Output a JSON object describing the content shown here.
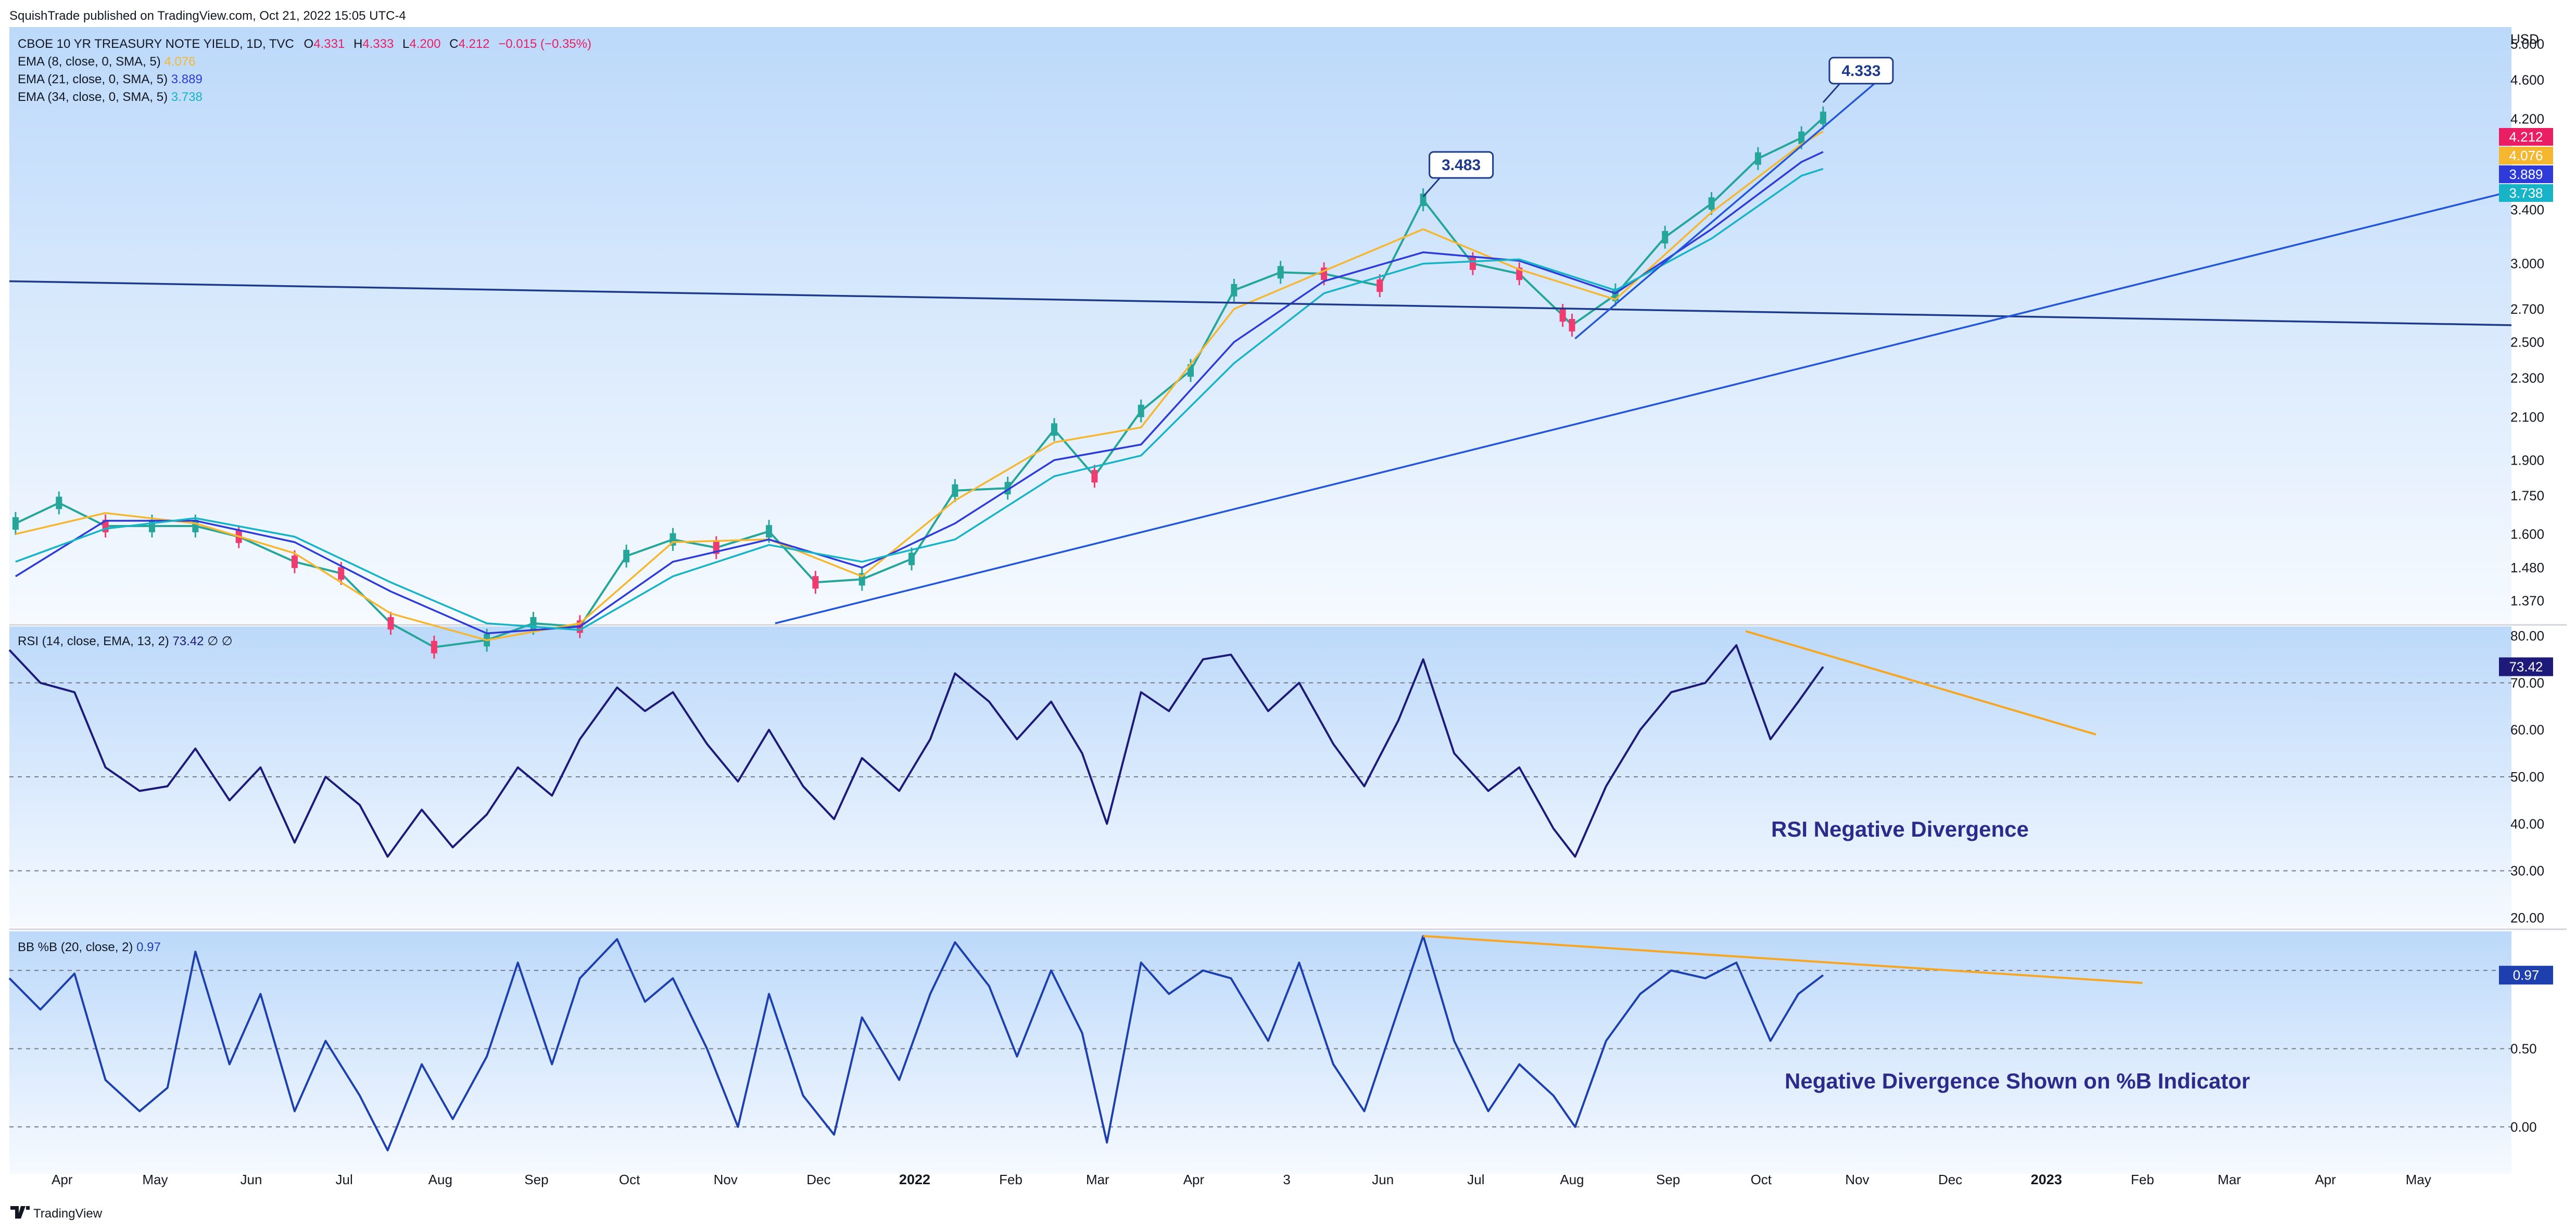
{
  "header": {
    "published": "SquishTrade published on TradingView.com, Oct 21, 2022 15:05 UTC-4",
    "footer_brand": "TradingView"
  },
  "price_pane": {
    "title": "CBOE 10 YR TREASURY NOTE YIELD, 1D, TVC",
    "ohlc": [
      {
        "k": "O",
        "v": "4.331"
      },
      {
        "k": "H",
        "v": "4.333"
      },
      {
        "k": "L",
        "v": "4.200"
      },
      {
        "k": "C",
        "v": "4.212"
      }
    ],
    "change": "−0.015 (−0.35%)",
    "indicators": [
      {
        "label": "EMA (8, close, 0, SMA, 5)",
        "value": "4.076",
        "color": "#f5b72f"
      },
      {
        "label": "EMA (21, close, 0, SMA, 5)",
        "value": "3.889",
        "color": "#2f3bd8"
      },
      {
        "label": "EMA (34, close, 0, SMA, 5)",
        "value": "3.738",
        "color": "#17b3c7"
      }
    ],
    "currency": "USD",
    "y_ticks": [
      "5.000",
      "4.600",
      "4.200",
      "3.400",
      "3.000",
      "2.700",
      "2.500",
      "2.300",
      "2.100",
      "1.900",
      "1.750",
      "1.600",
      "1.480",
      "1.370"
    ],
    "last_tags": [
      {
        "value": "4.212",
        "color": "#e91e63"
      },
      {
        "value": "4.076",
        "color": "#f5b72f"
      },
      {
        "value": "3.889",
        "color": "#2f3bd8"
      },
      {
        "value": "3.738",
        "color": "#17b3c7"
      }
    ],
    "callouts": [
      "3.483",
      "4.333"
    ]
  },
  "rsi_pane": {
    "title": "RSI (14, close, EMA, 13, 2)",
    "value": "73.42",
    "suffix": "∅ ∅",
    "y_ticks": [
      "80.00",
      "70.00",
      "60.00",
      "50.00",
      "40.00",
      "30.00",
      "20.00"
    ],
    "annotation": "RSI Negative Divergence",
    "color": "#1e1a7a"
  },
  "bb_pane": {
    "title": "BB %B (20, close, 2)",
    "value": "0.97",
    "y_ticks": [
      "0.50",
      "0.00"
    ],
    "annotation": "Negative Divergence Shown on %B Indicator",
    "color": "#1e40af"
  },
  "x_axis": {
    "labels": [
      "Apr",
      "May",
      "Jun",
      "Jul",
      "Aug",
      "Sep",
      "Oct",
      "Nov",
      "Dec",
      "2022",
      "Feb",
      "Mar",
      "Apr",
      "3",
      "Jun",
      "Jul",
      "Aug",
      "Sep",
      "Oct",
      "Nov",
      "Dec",
      "2023",
      "Feb",
      "Mar",
      "Apr",
      "May"
    ],
    "bold": [
      "2022",
      "2023"
    ]
  },
  "chart_data": [
    {
      "type": "line",
      "title": "CBOE 10 YR TREASURY NOTE YIELD, 1D, TVC",
      "scale": "log",
      "ylim": [
        1.3,
        5.2
      ],
      "x_range": [
        "2021-03-15",
        "2023-05-31"
      ],
      "series": [
        {
          "name": "CBOE 10 YR TREASURY NOTE YIELD",
          "color": "#26a69a",
          "x": [
            "2021-03-17",
            "2021-03-31",
            "2021-04-15",
            "2021-04-30",
            "2021-05-14",
            "2021-05-28",
            "2021-06-15",
            "2021-06-30",
            "2021-07-16",
            "2021-07-30",
            "2021-08-16",
            "2021-08-31",
            "2021-09-15",
            "2021-09-30",
            "2021-10-15",
            "2021-10-29",
            "2021-11-15",
            "2021-11-30",
            "2021-12-15",
            "2021-12-31",
            "2022-01-14",
            "2022-01-31",
            "2022-02-15",
            "2022-02-28",
            "2022-03-15",
            "2022-03-31",
            "2022-04-14",
            "2022-04-29",
            "2022-05-13",
            "2022-05-31",
            "2022-06-14",
            "2022-06-30",
            "2022-07-15",
            "2022-07-29",
            "2022-08-01",
            "2022-08-15",
            "2022-08-31",
            "2022-09-15",
            "2022-09-30",
            "2022-10-14",
            "2022-10-21"
          ],
          "y": [
            1.64,
            1.72,
            1.63,
            1.63,
            1.63,
            1.59,
            1.5,
            1.46,
            1.3,
            1.23,
            1.25,
            1.3,
            1.29,
            1.52,
            1.58,
            1.55,
            1.61,
            1.43,
            1.44,
            1.51,
            1.77,
            1.78,
            2.04,
            1.83,
            2.13,
            2.34,
            2.82,
            2.94,
            2.93,
            2.85,
            3.48,
            3.0,
            2.93,
            2.66,
            2.6,
            2.79,
            3.19,
            3.45,
            3.83,
            4.02,
            4.21
          ]
        },
        {
          "name": "EMA (8, close, 0, SMA, 5)",
          "color": "#f5b72f",
          "x": [
            "2021-03-17",
            "2021-04-15",
            "2021-05-14",
            "2021-06-15",
            "2021-07-16",
            "2021-08-16",
            "2021-09-15",
            "2021-10-15",
            "2021-11-15",
            "2021-12-15",
            "2022-01-14",
            "2022-02-15",
            "2022-03-15",
            "2022-04-14",
            "2022-05-13",
            "2022-06-14",
            "2022-07-15",
            "2022-08-15",
            "2022-09-15",
            "2022-10-14",
            "2022-10-21"
          ],
          "y": [
            1.6,
            1.68,
            1.64,
            1.53,
            1.33,
            1.25,
            1.3,
            1.57,
            1.58,
            1.45,
            1.73,
            1.98,
            2.05,
            2.7,
            2.95,
            3.25,
            2.96,
            2.76,
            3.38,
            3.96,
            4.08
          ]
        },
        {
          "name": "EMA (21, close, 0, SMA, 5)",
          "color": "#2f3bd8",
          "x": [
            "2021-03-17",
            "2021-04-15",
            "2021-05-14",
            "2021-06-15",
            "2021-07-16",
            "2021-08-16",
            "2021-09-15",
            "2021-10-15",
            "2021-11-15",
            "2021-12-15",
            "2022-01-14",
            "2022-02-15",
            "2022-03-15",
            "2022-04-14",
            "2022-05-13",
            "2022-06-14",
            "2022-07-15",
            "2022-08-15",
            "2022-09-15",
            "2022-10-14",
            "2022-10-21"
          ],
          "y": [
            1.45,
            1.65,
            1.65,
            1.57,
            1.4,
            1.27,
            1.29,
            1.5,
            1.58,
            1.48,
            1.64,
            1.9,
            1.97,
            2.5,
            2.88,
            3.08,
            3.02,
            2.8,
            3.25,
            3.8,
            3.89
          ]
        },
        {
          "name": "EMA (34, close, 0, SMA, 5)",
          "color": "#17b3c7",
          "x": [
            "2021-03-17",
            "2021-04-15",
            "2021-05-14",
            "2021-06-15",
            "2021-07-16",
            "2021-08-16",
            "2021-09-15",
            "2021-10-15",
            "2021-11-15",
            "2021-12-15",
            "2022-01-14",
            "2022-02-15",
            "2022-03-15",
            "2022-04-14",
            "2022-05-13",
            "2022-06-14",
            "2022-07-15",
            "2022-08-15",
            "2022-09-15",
            "2022-10-14",
            "2022-10-21"
          ],
          "y": [
            1.5,
            1.62,
            1.66,
            1.59,
            1.43,
            1.3,
            1.28,
            1.45,
            1.56,
            1.5,
            1.58,
            1.83,
            1.92,
            2.38,
            2.8,
            3.0,
            3.03,
            2.82,
            3.18,
            3.68,
            3.74
          ]
        }
      ],
      "trendlines": [
        {
          "color": "#1e3a8a",
          "from": [
            "2021-03-15",
            2.88
          ],
          "to": [
            "2023-05-31",
            2.6
          ]
        },
        {
          "color": "#2456d8",
          "from": [
            "2021-11-17",
            1.3
          ],
          "to": [
            "2023-05-31",
            3.55
          ]
        },
        {
          "color": "#2456d8",
          "from": [
            "2022-08-02",
            2.52
          ],
          "to": [
            "2022-11-08",
            4.6
          ]
        }
      ],
      "callouts": [
        {
          "text": "3.483",
          "x": "2022-06-14",
          "y": 3.48
        },
        {
          "text": "4.333",
          "x": "2022-10-21",
          "y": 4.333
        }
      ]
    },
    {
      "type": "line",
      "title": "RSI (14, close, EMA, 13, 2)",
      "ylim": [
        18,
        82
      ],
      "series": [
        {
          "name": "RSI",
          "color": "#1e1a7a",
          "x": [
            "2021-03-15",
            "2021-03-25",
            "2021-04-05",
            "2021-04-15",
            "2021-04-26",
            "2021-05-05",
            "2021-05-14",
            "2021-05-25",
            "2021-06-04",
            "2021-06-15",
            "2021-06-25",
            "2021-07-06",
            "2021-07-15",
            "2021-07-26",
            "2021-08-05",
            "2021-08-16",
            "2021-08-26",
            "2021-09-06",
            "2021-09-15",
            "2021-09-27",
            "2021-10-06",
            "2021-10-15",
            "2021-10-26",
            "2021-11-05",
            "2021-11-15",
            "2021-11-26",
            "2021-12-06",
            "2021-12-15",
            "2021-12-27",
            "2022-01-06",
            "2022-01-14",
            "2022-01-25",
            "2022-02-03",
            "2022-02-14",
            "2022-02-24",
            "2022-03-04",
            "2022-03-15",
            "2022-03-24",
            "2022-04-04",
            "2022-04-13",
            "2022-04-25",
            "2022-05-05",
            "2022-05-16",
            "2022-05-26",
            "2022-06-06",
            "2022-06-14",
            "2022-06-24",
            "2022-07-05",
            "2022-07-15",
            "2022-07-26",
            "2022-08-02",
            "2022-08-12",
            "2022-08-23",
            "2022-09-02",
            "2022-09-13",
            "2022-09-23",
            "2022-10-04",
            "2022-10-13",
            "2022-10-21"
          ],
          "y": [
            77,
            70,
            68,
            52,
            47,
            48,
            56,
            45,
            52,
            36,
            50,
            44,
            33,
            43,
            35,
            42,
            52,
            46,
            58,
            69,
            64,
            68,
            57,
            49,
            60,
            48,
            41,
            54,
            47,
            58,
            72,
            66,
            58,
            66,
            55,
            40,
            68,
            64,
            75,
            76,
            64,
            70,
            57,
            48,
            62,
            75,
            55,
            47,
            52,
            39,
            33,
            48,
            60,
            68,
            70,
            78,
            58,
            66,
            73.42
          ]
        }
      ],
      "trendline": {
        "color": "#f5a623",
        "from": [
          "2022-09-26",
          81
        ],
        "to": [
          "2023-01-17",
          59
        ]
      }
    },
    {
      "type": "line",
      "title": "BB %B (20, close, 2)",
      "ylim": [
        -0.3,
        1.25
      ],
      "series": [
        {
          "name": "BB %B",
          "color": "#1e40af",
          "x": [
            "2021-03-15",
            "2021-03-25",
            "2021-04-05",
            "2021-04-15",
            "2021-04-26",
            "2021-05-05",
            "2021-05-14",
            "2021-05-25",
            "2021-06-04",
            "2021-06-15",
            "2021-06-25",
            "2021-07-06",
            "2021-07-15",
            "2021-07-26",
            "2021-08-05",
            "2021-08-16",
            "2021-08-26",
            "2021-09-06",
            "2021-09-15",
            "2021-09-27",
            "2021-10-06",
            "2021-10-15",
            "2021-10-26",
            "2021-11-05",
            "2021-11-15",
            "2021-11-26",
            "2021-12-06",
            "2021-12-15",
            "2021-12-27",
            "2022-01-06",
            "2022-01-14",
            "2022-01-25",
            "2022-02-03",
            "2022-02-14",
            "2022-02-24",
            "2022-03-04",
            "2022-03-15",
            "2022-03-24",
            "2022-04-04",
            "2022-04-13",
            "2022-04-25",
            "2022-05-05",
            "2022-05-16",
            "2022-05-26",
            "2022-06-06",
            "2022-06-14",
            "2022-06-24",
            "2022-07-05",
            "2022-07-15",
            "2022-07-26",
            "2022-08-02",
            "2022-08-12",
            "2022-08-23",
            "2022-09-02",
            "2022-09-13",
            "2022-09-23",
            "2022-10-04",
            "2022-10-13",
            "2022-10-21"
          ],
          "y": [
            0.95,
            0.75,
            0.98,
            0.3,
            0.1,
            0.25,
            1.12,
            0.4,
            0.85,
            0.1,
            0.55,
            0.2,
            -0.15,
            0.4,
            0.05,
            0.45,
            1.05,
            0.4,
            0.95,
            1.2,
            0.8,
            0.95,
            0.5,
            0.0,
            0.85,
            0.2,
            -0.05,
            0.7,
            0.3,
            0.85,
            1.18,
            0.9,
            0.45,
            1.0,
            0.6,
            -0.1,
            1.05,
            0.85,
            1.0,
            0.95,
            0.55,
            1.05,
            0.4,
            0.1,
            0.75,
            1.22,
            0.55,
            0.1,
            0.4,
            0.2,
            0.0,
            0.55,
            0.85,
            1.0,
            0.95,
            1.05,
            0.55,
            0.85,
            0.97
          ]
        }
      ],
      "trendline": {
        "color": "#f5a623",
        "from": [
          "2022-06-14",
          1.22
        ],
        "to": [
          "2023-02-01",
          0.92
        ]
      }
    }
  ]
}
